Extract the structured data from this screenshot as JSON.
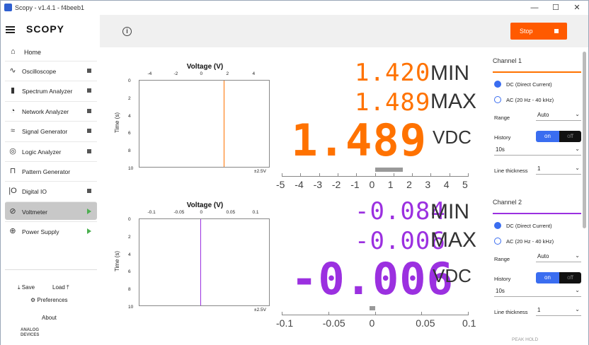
{
  "titlebar": {
    "title": "Scopy - v1.4.1 - f4beeb1",
    "minimize": "—",
    "maximize": "☐",
    "close": "✕"
  },
  "sidebar": {
    "logo": "SCOPY",
    "home": "Home",
    "items": [
      {
        "label": "Oscilloscope",
        "icon": "oscilloscope-icon",
        "state": "square"
      },
      {
        "label": "Spectrum Analyzer",
        "icon": "spectrum-icon",
        "state": "square"
      },
      {
        "label": "Network Analyzer",
        "icon": "network-icon",
        "state": "square"
      },
      {
        "label": "Signal Generator",
        "icon": "signal-icon",
        "state": "square"
      },
      {
        "label": "Logic Analyzer",
        "icon": "logic-icon",
        "state": "square"
      },
      {
        "label": "Pattern Generator",
        "icon": "pattern-icon",
        "state": "none"
      },
      {
        "label": "Digital IO",
        "icon": "digital-icon",
        "state": "square"
      },
      {
        "label": "Voltmeter",
        "icon": "voltmeter-icon",
        "state": "play"
      },
      {
        "label": "Power Supply",
        "icon": "power-icon",
        "state": "play"
      }
    ],
    "save": "Save",
    "load": "Load",
    "preferences": "Preferences",
    "about": "About",
    "brand_line1": "ANALOG",
    "brand_line2": "DEVICES"
  },
  "topbar": {
    "stop_label": "Stop"
  },
  "ch1": {
    "color": "#ff7200",
    "hist_title": "Voltage (V)",
    "ylabel": "Time (s)",
    "xticks": [
      "-4",
      "-2",
      "0",
      "2",
      "4"
    ],
    "yticks": [
      "0",
      "2",
      "4",
      "6",
      "8",
      "10"
    ],
    "range_label": "±2.5V",
    "min": "1.420",
    "max": "1.489",
    "value": "1.489",
    "min_unit": "MIN",
    "max_unit": "MAX",
    "unit": "VDC",
    "scale_ticks": [
      "-5",
      "-4",
      "-3",
      "-2",
      "-1",
      "0",
      "1",
      "2",
      "3",
      "4",
      "5"
    ],
    "bar_value": 1.489,
    "line_value": 1.489
  },
  "ch2": {
    "color": "#9b30e0",
    "hist_title": "Voltage (V)",
    "ylabel": "Time (s)",
    "xticks": [
      "-0.1",
      "-0.05",
      "0",
      "0.05",
      "0.1"
    ],
    "yticks": [
      "0",
      "2",
      "4",
      "6",
      "8",
      "10"
    ],
    "range_label": "±2.5V",
    "min": "-0.084",
    "max": "-0.006",
    "value": "-0.006",
    "min_unit": "MIN",
    "max_unit": "MAX",
    "unit": "VDC",
    "scale_ticks": [
      "-0.1",
      "-0.05",
      "0",
      "0.05",
      "0.1"
    ],
    "bar_value": -0.006,
    "line_value": -0.006
  },
  "panel": {
    "ch1": {
      "title": "Channel 1",
      "dc": "DC (Direct Current)",
      "ac": "AC (20 Hz - 40 kHz)",
      "range_label": "Range",
      "range_value": "Auto",
      "history_label": "History",
      "on": "on",
      "off": "off",
      "history_value": "10s",
      "thick_label": "Line thickness",
      "thick_value": "1"
    },
    "ch2": {
      "title": "Channel 2",
      "dc": "DC (Direct Current)",
      "ac": "AC (20 Hz - 40 kHz)",
      "range_label": "Range",
      "range_value": "Auto",
      "history_label": "History",
      "on": "on",
      "off": "off",
      "history_value": "10s",
      "thick_label": "Line thickness",
      "thick_value": "1"
    },
    "peak_hold": "PEAK HOLD"
  }
}
